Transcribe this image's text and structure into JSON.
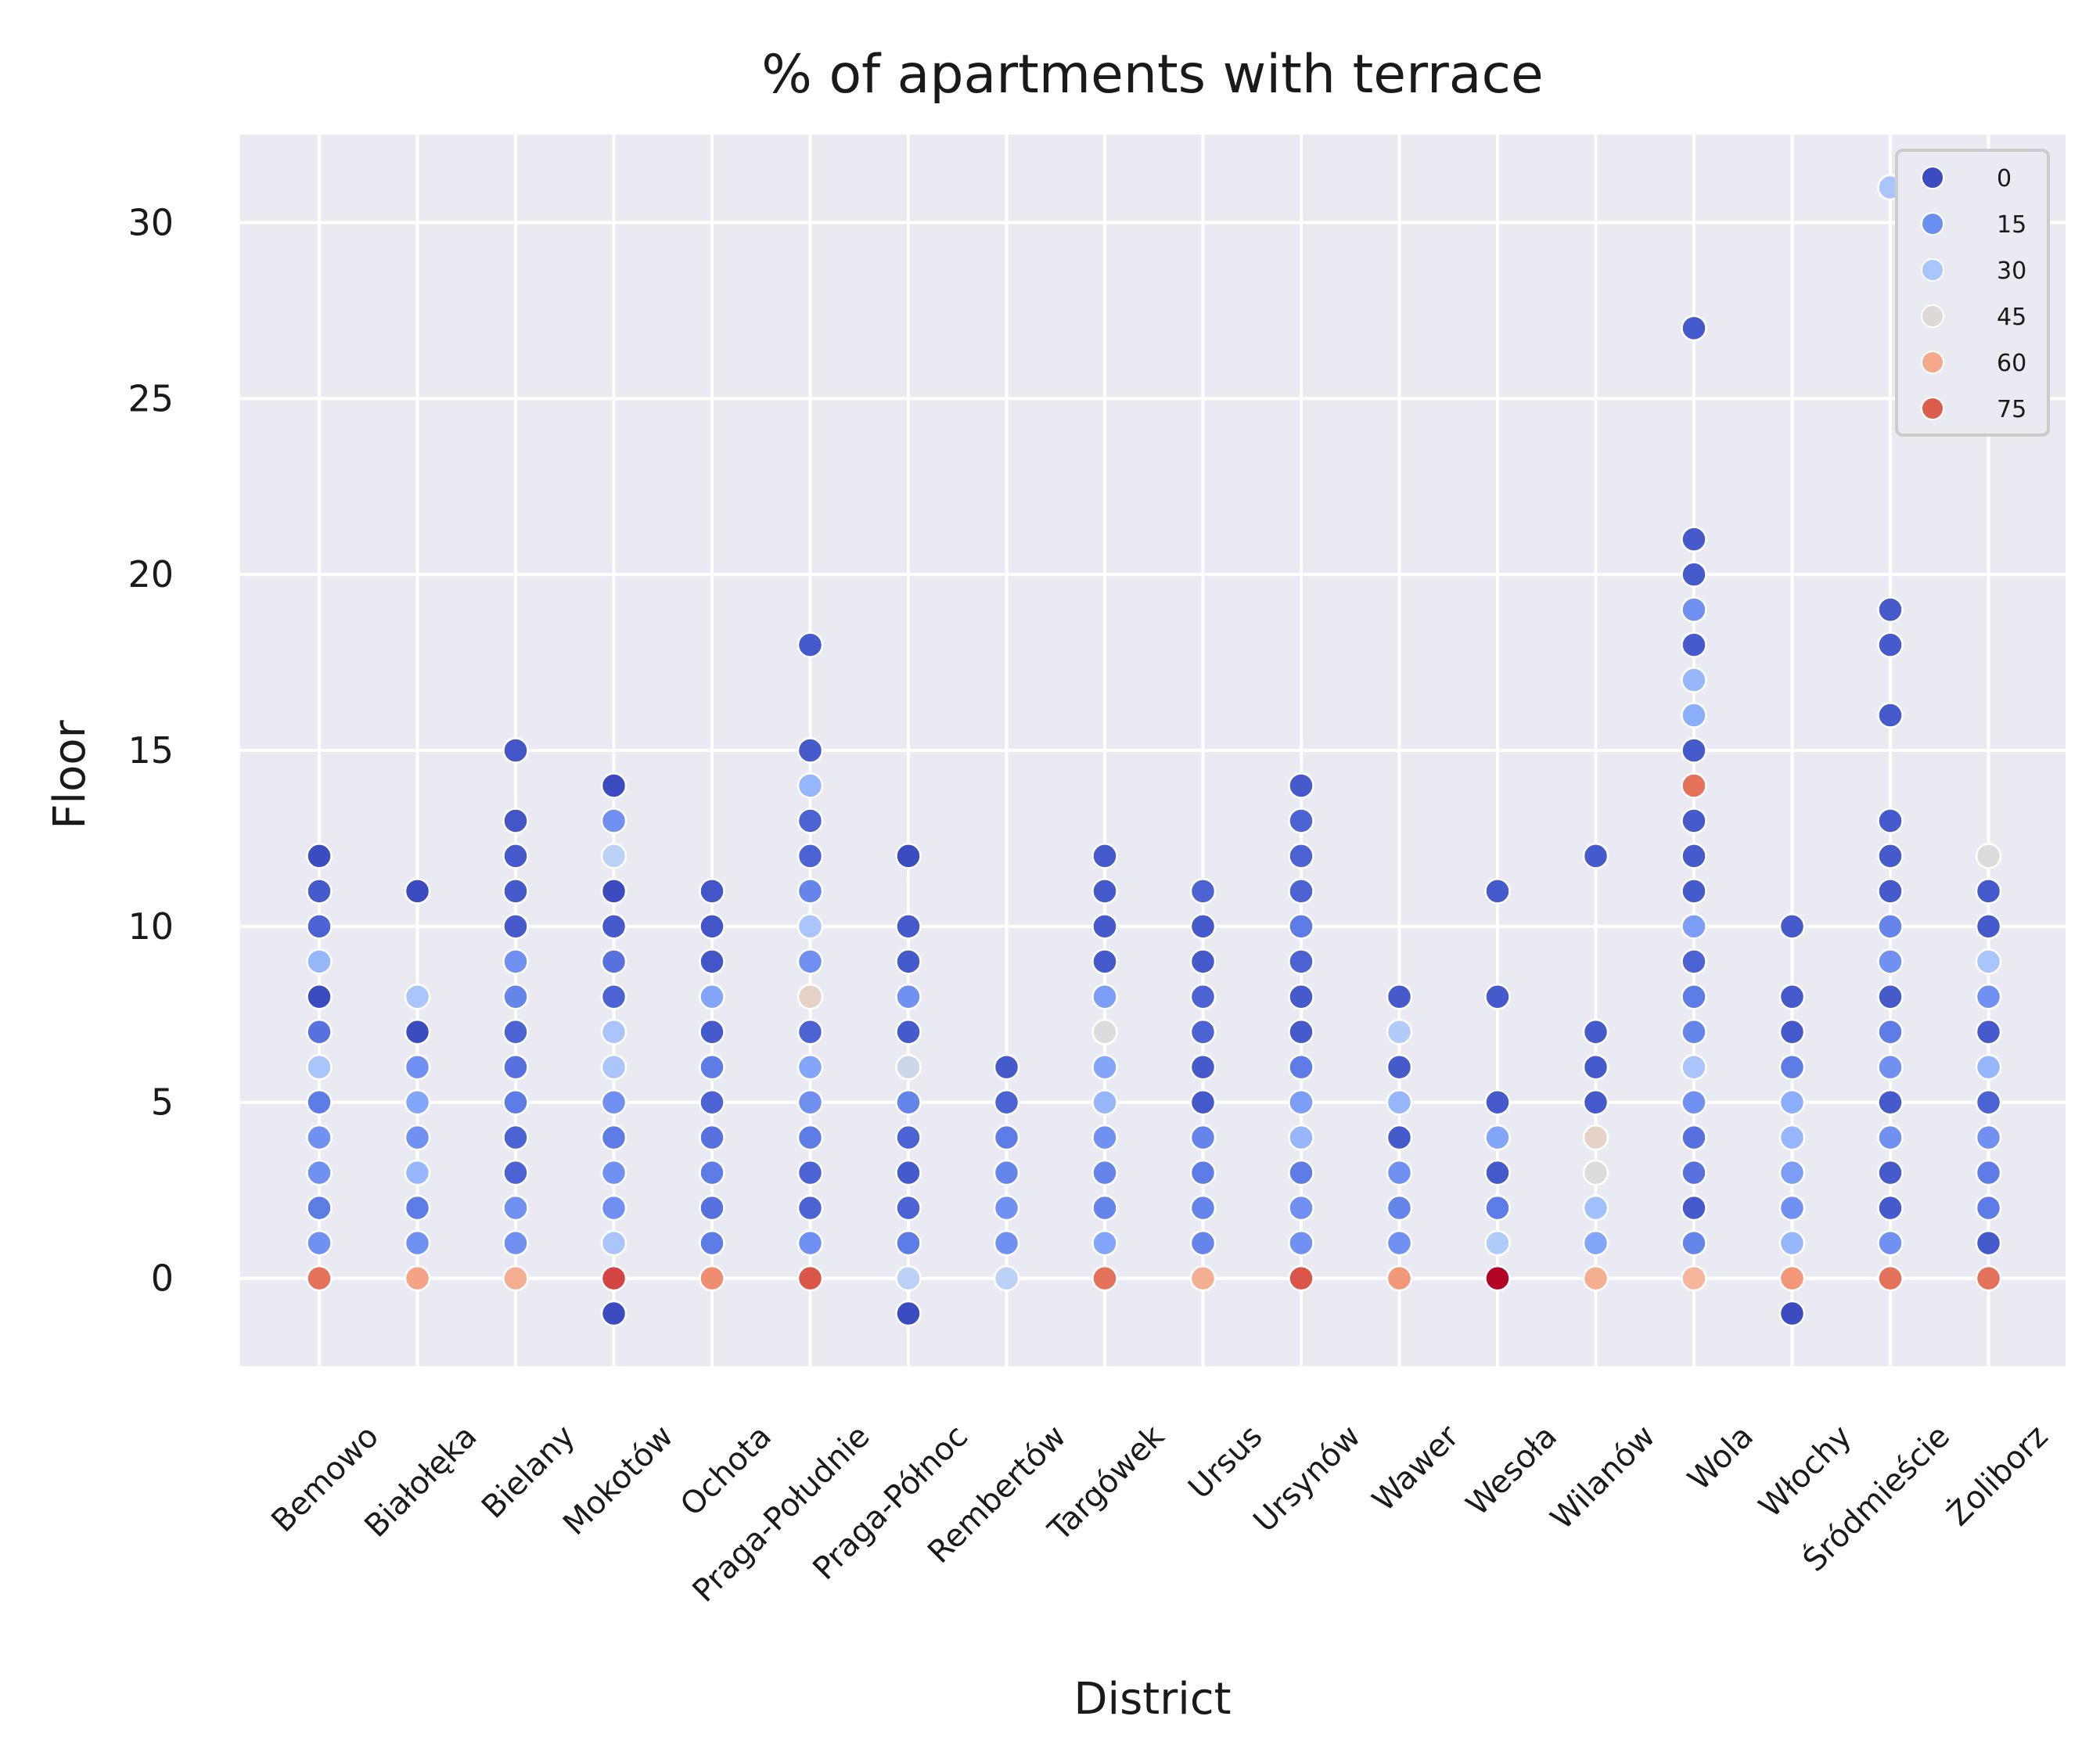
{
  "chart_data": {
    "type": "scatter",
    "title": "% of apartments with terrace",
    "xlabel": "District",
    "ylabel": "Floor",
    "ylim": [
      -2.5,
      32.5
    ],
    "yticks": [
      0,
      5,
      10,
      15,
      20,
      25,
      30
    ],
    "grid": true,
    "legend_placement": "top-right",
    "legend": [
      {
        "label": "0",
        "color": "#3b4cc0"
      },
      {
        "label": "15",
        "color": "#6b8ff0"
      },
      {
        "label": "30",
        "color": "#a9c5fc"
      },
      {
        "label": "45",
        "color": "#dcd9d6"
      },
      {
        "label": "60",
        "color": "#f4a98a"
      },
      {
        "label": "75",
        "color": "#dc5d4a"
      }
    ],
    "categories": [
      "Bemowo",
      "Białołęka",
      "Bielany",
      "Mokotów",
      "Ochota",
      "Praga-Południe",
      "Praga-Północ",
      "Rembertów",
      "Targówek",
      "Ursus",
      "Ursynów",
      "Wawer",
      "Wesoła",
      "Wilanów",
      "Wola",
      "Włochy",
      "Śródmieście",
      "Żoliborz"
    ],
    "value_label": "% of apartments with terrace",
    "points": [
      [
        "Bemowo",
        0,
        75
      ],
      [
        "Bemowo",
        1,
        15
      ],
      [
        "Bemowo",
        2,
        10
      ],
      [
        "Bemowo",
        3,
        15
      ],
      [
        "Bemowo",
        4,
        15
      ],
      [
        "Bemowo",
        5,
        10
      ],
      [
        "Bemowo",
        6,
        30
      ],
      [
        "Bemowo",
        7,
        8
      ],
      [
        "Bemowo",
        8,
        0
      ],
      [
        "Bemowo",
        9,
        25
      ],
      [
        "Bemowo",
        10,
        5
      ],
      [
        "Bemowo",
        11,
        3
      ],
      [
        "Bemowo",
        12,
        0
      ],
      [
        "Białołęka",
        0,
        65
      ],
      [
        "Białołęka",
        1,
        15
      ],
      [
        "Białołęka",
        2,
        10
      ],
      [
        "Białołęka",
        3,
        25
      ],
      [
        "Białołęka",
        4,
        15
      ],
      [
        "Białołęka",
        5,
        20
      ],
      [
        "Białołęka",
        6,
        15
      ],
      [
        "Białołęka",
        7,
        0
      ],
      [
        "Białołęka",
        8,
        30
      ],
      [
        "Białołęka",
        11,
        0
      ],
      [
        "Bielany",
        0,
        62
      ],
      [
        "Bielany",
        1,
        15
      ],
      [
        "Bielany",
        2,
        15
      ],
      [
        "Bielany",
        3,
        5
      ],
      [
        "Bielany",
        4,
        5
      ],
      [
        "Bielany",
        5,
        10
      ],
      [
        "Bielany",
        6,
        8
      ],
      [
        "Bielany",
        7,
        5
      ],
      [
        "Bielany",
        8,
        12
      ],
      [
        "Bielany",
        9,
        15
      ],
      [
        "Bielany",
        10,
        3
      ],
      [
        "Bielany",
        11,
        3
      ],
      [
        "Bielany",
        12,
        3
      ],
      [
        "Bielany",
        13,
        2
      ],
      [
        "Bielany",
        15,
        2
      ],
      [
        "Mokotów",
        -1,
        0
      ],
      [
        "Mokotów",
        0,
        82
      ],
      [
        "Mokotów",
        1,
        30
      ],
      [
        "Mokotów",
        2,
        15
      ],
      [
        "Mokotów",
        3,
        15
      ],
      [
        "Mokotów",
        4,
        10
      ],
      [
        "Mokotów",
        5,
        15
      ],
      [
        "Mokotów",
        6,
        30
      ],
      [
        "Mokotów",
        7,
        30
      ],
      [
        "Mokotów",
        8,
        5
      ],
      [
        "Mokotów",
        9,
        8
      ],
      [
        "Mokotów",
        10,
        3
      ],
      [
        "Mokotów",
        11,
        0
      ],
      [
        "Mokotów",
        12,
        35
      ],
      [
        "Mokotów",
        13,
        15
      ],
      [
        "Mokotów",
        14,
        0
      ],
      [
        "Ochota",
        0,
        70
      ],
      [
        "Ochota",
        1,
        10
      ],
      [
        "Ochota",
        2,
        8
      ],
      [
        "Ochota",
        3,
        10
      ],
      [
        "Ochota",
        4,
        8
      ],
      [
        "Ochota",
        5,
        5
      ],
      [
        "Ochota",
        6,
        10
      ],
      [
        "Ochota",
        7,
        3
      ],
      [
        "Ochota",
        8,
        20
      ],
      [
        "Ochota",
        9,
        2
      ],
      [
        "Ochota",
        10,
        2
      ],
      [
        "Ochota",
        11,
        2
      ],
      [
        "Praga-Południe",
        0,
        80
      ],
      [
        "Praga-Południe",
        1,
        15
      ],
      [
        "Praga-Południe",
        2,
        5
      ],
      [
        "Praga-Południe",
        3,
        5
      ],
      [
        "Praga-Południe",
        4,
        10
      ],
      [
        "Praga-Południe",
        5,
        15
      ],
      [
        "Praga-Południe",
        6,
        20
      ],
      [
        "Praga-Południe",
        7,
        5
      ],
      [
        "Praga-Południe",
        8,
        50
      ],
      [
        "Praga-Południe",
        9,
        15
      ],
      [
        "Praga-Południe",
        10,
        30
      ],
      [
        "Praga-Południe",
        11,
        12
      ],
      [
        "Praga-Południe",
        12,
        5
      ],
      [
        "Praga-Południe",
        13,
        5
      ],
      [
        "Praga-Południe",
        14,
        25
      ],
      [
        "Praga-Południe",
        15,
        3
      ],
      [
        "Praga-Południe",
        18,
        3
      ],
      [
        "Praga-Północ",
        -1,
        0
      ],
      [
        "Praga-Północ",
        0,
        35
      ],
      [
        "Praga-Północ",
        1,
        10
      ],
      [
        "Praga-Północ",
        2,
        5
      ],
      [
        "Praga-Północ",
        3,
        3
      ],
      [
        "Praga-Północ",
        4,
        5
      ],
      [
        "Praga-Północ",
        5,
        12
      ],
      [
        "Praga-Północ",
        6,
        40
      ],
      [
        "Praga-Północ",
        7,
        3
      ],
      [
        "Praga-Północ",
        8,
        15
      ],
      [
        "Praga-Północ",
        9,
        3
      ],
      [
        "Praga-Północ",
        10,
        3
      ],
      [
        "Praga-Północ",
        12,
        0
      ],
      [
        "Rembertów",
        0,
        35
      ],
      [
        "Rembertów",
        1,
        15
      ],
      [
        "Rembertów",
        2,
        15
      ],
      [
        "Rembertów",
        3,
        12
      ],
      [
        "Rembertów",
        4,
        10
      ],
      [
        "Rembertów",
        5,
        5
      ],
      [
        "Rembertów",
        6,
        3
      ],
      [
        "Targówek",
        0,
        75
      ],
      [
        "Targówek",
        1,
        20
      ],
      [
        "Targówek",
        2,
        12
      ],
      [
        "Targówek",
        3,
        12
      ],
      [
        "Targówek",
        4,
        15
      ],
      [
        "Targówek",
        5,
        25
      ],
      [
        "Targówek",
        6,
        20
      ],
      [
        "Targówek",
        7,
        45
      ],
      [
        "Targówek",
        8,
        18
      ],
      [
        "Targówek",
        9,
        3
      ],
      [
        "Targówek",
        10,
        3
      ],
      [
        "Targówek",
        11,
        3
      ],
      [
        "Targówek",
        12,
        3
      ],
      [
        "Ursus",
        0,
        62
      ],
      [
        "Ursus",
        1,
        12
      ],
      [
        "Ursus",
        2,
        12
      ],
      [
        "Ursus",
        3,
        10
      ],
      [
        "Ursus",
        4,
        12
      ],
      [
        "Ursus",
        5,
        3
      ],
      [
        "Ursus",
        6,
        3
      ],
      [
        "Ursus",
        7,
        5
      ],
      [
        "Ursus",
        8,
        5
      ],
      [
        "Ursus",
        9,
        3
      ],
      [
        "Ursus",
        10,
        3
      ],
      [
        "Ursus",
        11,
        5
      ],
      [
        "Ursynów",
        0,
        80
      ],
      [
        "Ursynów",
        1,
        15
      ],
      [
        "Ursynów",
        2,
        15
      ],
      [
        "Ursynów",
        3,
        10
      ],
      [
        "Ursynów",
        4,
        25
      ],
      [
        "Ursynów",
        5,
        18
      ],
      [
        "Ursynów",
        6,
        10
      ],
      [
        "Ursynów",
        7,
        3
      ],
      [
        "Ursynów",
        8,
        3
      ],
      [
        "Ursynów",
        9,
        5
      ],
      [
        "Ursynów",
        10,
        10
      ],
      [
        "Ursynów",
        11,
        5
      ],
      [
        "Ursynów",
        12,
        5
      ],
      [
        "Ursynów",
        13,
        5
      ],
      [
        "Ursynów",
        14,
        3
      ],
      [
        "Wawer",
        0,
        68
      ],
      [
        "Wawer",
        1,
        15
      ],
      [
        "Wawer",
        2,
        12
      ],
      [
        "Wawer",
        3,
        15
      ],
      [
        "Wawer",
        4,
        3
      ],
      [
        "Wawer",
        5,
        25
      ],
      [
        "Wawer",
        6,
        3
      ],
      [
        "Wawer",
        7,
        32
      ],
      [
        "Wawer",
        8,
        3
      ],
      [
        "Wesoła",
        0,
        90
      ],
      [
        "Wesoła",
        1,
        32
      ],
      [
        "Wesoła",
        2,
        10
      ],
      [
        "Wesoła",
        3,
        3
      ],
      [
        "Wesoła",
        4,
        20
      ],
      [
        "Wesoła",
        5,
        3
      ],
      [
        "Wesoła",
        8,
        3
      ],
      [
        "Wesoła",
        11,
        3
      ],
      [
        "Wilanów",
        0,
        62
      ],
      [
        "Wilanów",
        1,
        20
      ],
      [
        "Wilanów",
        2,
        28
      ],
      [
        "Wilanów",
        3,
        45
      ],
      [
        "Wilanów",
        4,
        50
      ],
      [
        "Wilanów",
        5,
        3
      ],
      [
        "Wilanów",
        6,
        3
      ],
      [
        "Wilanów",
        7,
        3
      ],
      [
        "Wilanów",
        12,
        3
      ],
      [
        "Wola",
        0,
        60
      ],
      [
        "Wola",
        1,
        12
      ],
      [
        "Wola",
        2,
        3
      ],
      [
        "Wola",
        3,
        8
      ],
      [
        "Wola",
        4,
        8
      ],
      [
        "Wola",
        5,
        15
      ],
      [
        "Wola",
        6,
        30
      ],
      [
        "Wola",
        7,
        12
      ],
      [
        "Wola",
        8,
        10
      ],
      [
        "Wola",
        9,
        5
      ],
      [
        "Wola",
        10,
        18
      ],
      [
        "Wola",
        11,
        3
      ],
      [
        "Wola",
        12,
        3
      ],
      [
        "Wola",
        13,
        3
      ],
      [
        "Wola",
        14,
        75
      ],
      [
        "Wola",
        15,
        3
      ],
      [
        "Wola",
        16,
        22
      ],
      [
        "Wola",
        17,
        25
      ],
      [
        "Wola",
        18,
        3
      ],
      [
        "Wola",
        19,
        15
      ],
      [
        "Wola",
        20,
        3
      ],
      [
        "Wola",
        21,
        3
      ],
      [
        "Wola",
        27,
        3
      ],
      [
        "Włochy",
        -1,
        0
      ],
      [
        "Włochy",
        0,
        68
      ],
      [
        "Włochy",
        1,
        25
      ],
      [
        "Włochy",
        2,
        15
      ],
      [
        "Włochy",
        3,
        18
      ],
      [
        "Włochy",
        4,
        25
      ],
      [
        "Włochy",
        5,
        22
      ],
      [
        "Włochy",
        6,
        10
      ],
      [
        "Włochy",
        7,
        3
      ],
      [
        "Włochy",
        8,
        3
      ],
      [
        "Włochy",
        10,
        3
      ],
      [
        "Śródmieście",
        0,
        75
      ],
      [
        "Śródmieście",
        1,
        15
      ],
      [
        "Śródmieście",
        2,
        3
      ],
      [
        "Śródmieście",
        3,
        3
      ],
      [
        "Śródmieście",
        4,
        15
      ],
      [
        "Śródmieście",
        5,
        3
      ],
      [
        "Śródmieście",
        6,
        15
      ],
      [
        "Śródmieście",
        7,
        10
      ],
      [
        "Śródmieście",
        8,
        3
      ],
      [
        "Śródmieście",
        9,
        15
      ],
      [
        "Śródmieście",
        10,
        12
      ],
      [
        "Śródmieście",
        11,
        3
      ],
      [
        "Śródmieście",
        12,
        3
      ],
      [
        "Śródmieście",
        13,
        3
      ],
      [
        "Śródmieście",
        16,
        3
      ],
      [
        "Śródmieście",
        18,
        3
      ],
      [
        "Śródmieście",
        19,
        3
      ],
      [
        "Śródmieście",
        31,
        30
      ],
      [
        "Żoliborz",
        0,
        75
      ],
      [
        "Żoliborz",
        1,
        3
      ],
      [
        "Żoliborz",
        2,
        10
      ],
      [
        "Żoliborz",
        3,
        10
      ],
      [
        "Żoliborz",
        4,
        15
      ],
      [
        "Żoliborz",
        5,
        5
      ],
      [
        "Żoliborz",
        6,
        25
      ],
      [
        "Żoliborz",
        7,
        3
      ],
      [
        "Żoliborz",
        8,
        15
      ],
      [
        "Żoliborz",
        9,
        30
      ],
      [
        "Żoliborz",
        10,
        3
      ],
      [
        "Żoliborz",
        11,
        3
      ],
      [
        "Żoliborz",
        12,
        45
      ]
    ]
  }
}
